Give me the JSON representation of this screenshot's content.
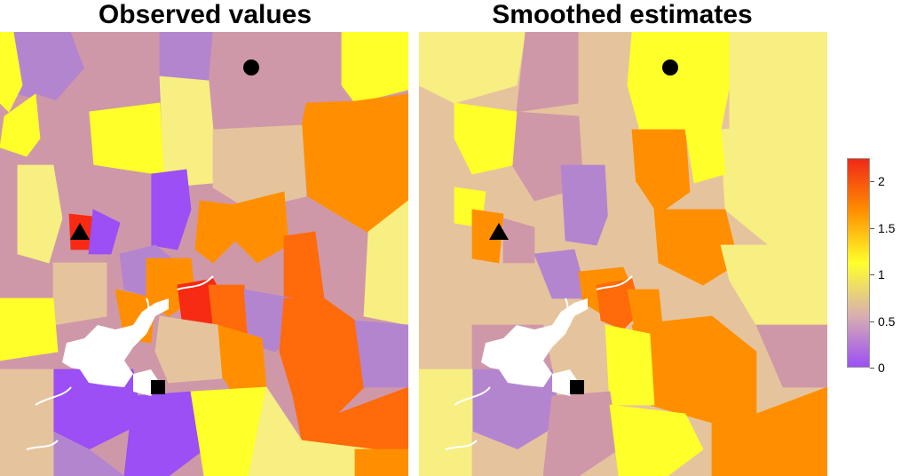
{
  "panels": [
    {
      "id": "observed",
      "title": "Observed values"
    },
    {
      "id": "smoothed",
      "title": "Smoothed estimates"
    }
  ],
  "legend": {
    "min": 0,
    "max": 2.25,
    "labels": [
      "2",
      "1.5",
      "1",
      "0.5",
      "0"
    ],
    "colors": [
      "#f02818",
      "#ff8f00",
      "#ffff2d",
      "#d9b0b0",
      "#9b4ff5"
    ]
  },
  "colors": {
    "red": "#f72a14",
    "orange": "#ff8f00",
    "dark_orange": "#ff6a0a",
    "yellow": "#ffff29",
    "light_yellow": "#f7ef82",
    "tan": "#e5c49d",
    "mauve": "#cf98a8",
    "lilac": "#b485cf",
    "purple": "#9b4ff5",
    "river": "#ffffff"
  },
  "markers": [
    {
      "symbol": "circle",
      "name": "circle-marker"
    },
    {
      "symbol": "triangle",
      "name": "triangle-marker"
    },
    {
      "symbol": "square",
      "name": "square-marker"
    }
  ]
}
